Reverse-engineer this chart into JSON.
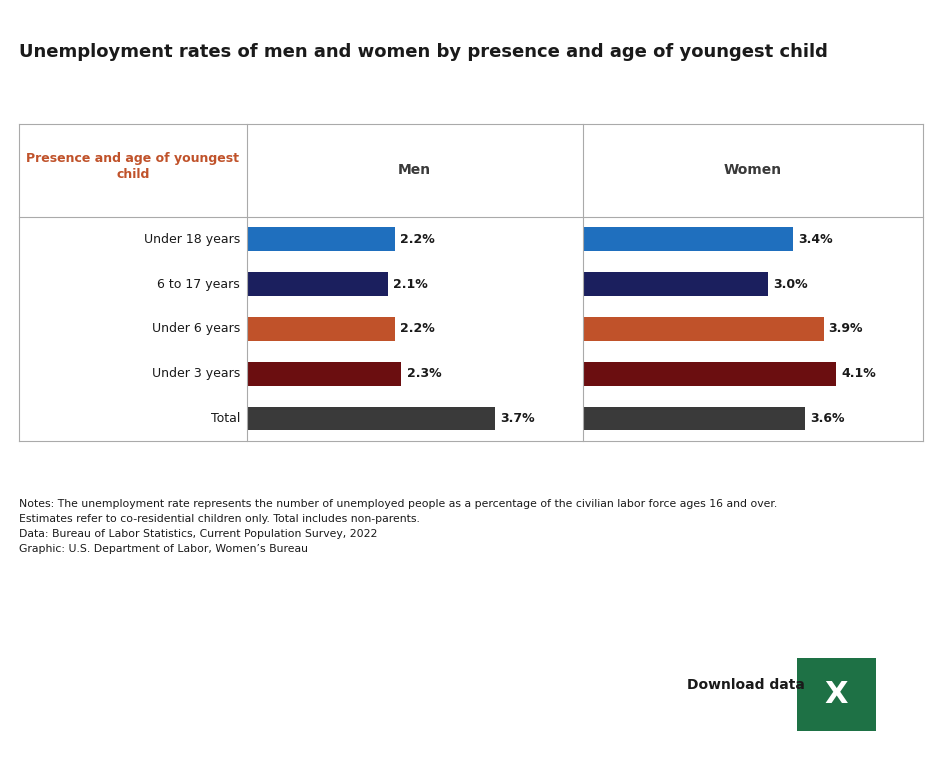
{
  "title": "Unemployment rates of men and women by presence and age of youngest child",
  "header_label": "Presence and age of youngest\nchild",
  "col_headers": [
    "Men",
    "Women"
  ],
  "categories": [
    "Under 18 years",
    "6 to 17 years",
    "Under 6 years",
    "Under 3 years",
    "Total"
  ],
  "men_values": [
    2.2,
    2.1,
    2.2,
    2.3,
    3.7
  ],
  "women_values": [
    3.4,
    3.0,
    3.9,
    4.1,
    3.6
  ],
  "bar_colors": [
    "#1F6FBE",
    "#1B1F5E",
    "#C0522A",
    "#6B0E10",
    "#3A3A3A"
  ],
  "men_labels": [
    "2.2%",
    "2.1%",
    "2.2%",
    "2.3%",
    "3.7%"
  ],
  "women_labels": [
    "3.4%",
    "3.0%",
    "3.9%",
    "4.1%",
    "3.6%"
  ],
  "notes_line1": "Notes: The unemployment rate represents the number of unemployed people as a percentage of the civilian labor force ages 16 and over.",
  "notes_line2": "Estimates refer to co-residential children only. Total includes non-parents.",
  "notes_line3": "Data: Bureau of Labor Statistics, Current Population Survey, 2022",
  "notes_line4": "Graphic: U.S. Department of Labor, Women’s Bureau",
  "download_text": "Download data",
  "title_color": "#1a1a1a",
  "header_color": "#C0522A",
  "col_header_color": "#3A3A3A",
  "background_color": "#ffffff",
  "border_color": "#aaaaaa",
  "men_max": 5.0,
  "women_max": 5.5
}
